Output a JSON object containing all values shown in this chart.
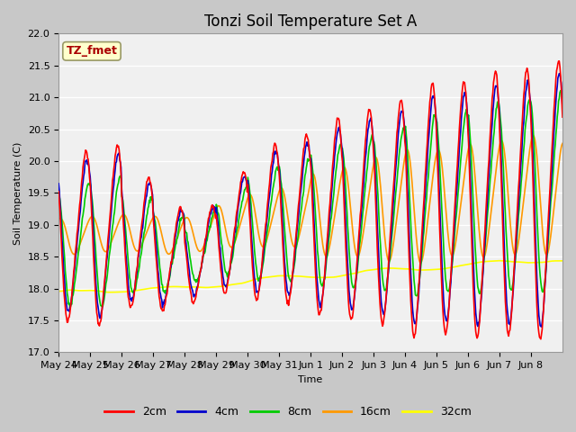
{
  "title": "Tonzi Soil Temperature Set A",
  "xlabel": "Time",
  "ylabel": "Soil Temperature (C)",
  "annotation": "TZ_fmet",
  "ylim": [
    17.0,
    22.0
  ],
  "yticks": [
    17.0,
    17.5,
    18.0,
    18.5,
    19.0,
    19.5,
    20.0,
    20.5,
    21.0,
    21.5,
    22.0
  ],
  "xtick_labels": [
    "May 24",
    "May 25",
    "May 26",
    "May 27",
    "May 28",
    "May 29",
    "May 30",
    "May 31",
    "Jun 1",
    "Jun 2",
    "Jun 3",
    "Jun 4",
    "Jun 5",
    "Jun 6",
    "Jun 7",
    "Jun 8"
  ],
  "legend_labels": [
    "2cm",
    "4cm",
    "8cm",
    "16cm",
    "32cm"
  ],
  "line_colors": [
    "#ff0000",
    "#0000cc",
    "#00cc00",
    "#ff9900",
    "#ffff00"
  ],
  "fig_bg": "#c8c8c8",
  "plot_bg": "#f0f0f0",
  "grid_color": "#ffffff",
  "title_fontsize": 12,
  "axis_fontsize": 8,
  "legend_fontsize": 9
}
